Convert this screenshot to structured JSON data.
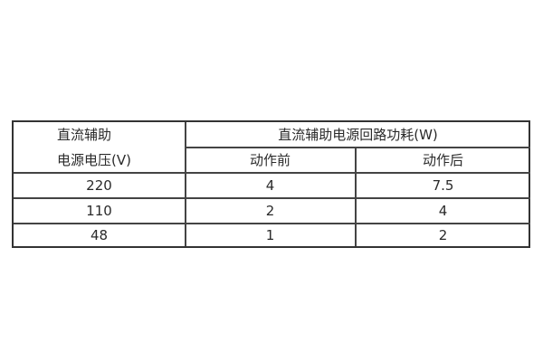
{
  "header": {
    "row_label_line1": "直流辅助",
    "row_label_line2": "电源电压(V)",
    "group_title": "直流辅助电源回路功耗(W)",
    "col_before": "动作前",
    "col_after": "动作后"
  },
  "rows": [
    {
      "voltage": "220",
      "before": "4",
      "after": "7.5"
    },
    {
      "voltage": "110",
      "before": "2",
      "after": "4"
    },
    {
      "voltage": "48",
      "before": "1",
      "after": "2"
    }
  ]
}
